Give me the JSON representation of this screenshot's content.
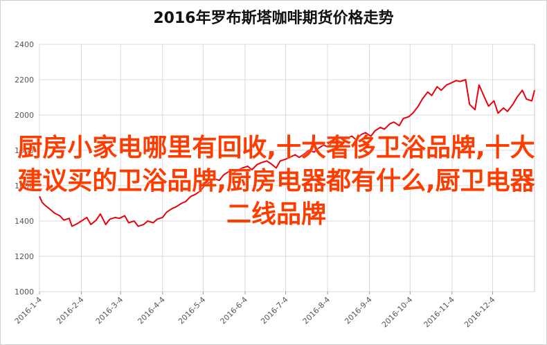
{
  "chart_data": {
    "type": "line",
    "title": "2016年罗布斯塔咖啡期货价格走势",
    "xlabel": "",
    "ylabel": "",
    "ylim": [
      1000,
      2400
    ],
    "yticks": [
      1000,
      1200,
      1400,
      1600,
      1800,
      2000,
      2200,
      2400
    ],
    "xticks": [
      "2016-1-4",
      "2016-2-4",
      "2016-3-4",
      "2016-4-4",
      "2016-5-4",
      "2016-6-4",
      "2016-7-4",
      "2016-8-4",
      "2016-9-4",
      "2016-10-4",
      "2016-11-4",
      "2016-12-4"
    ],
    "grid": true,
    "legend": "none",
    "series": [
      {
        "color": "#e8000b",
        "points": [
          [
            "2016-01-04",
            1540
          ],
          [
            "2016-01-06",
            1505
          ],
          [
            "2016-01-08",
            1490
          ],
          [
            "2016-01-12",
            1465
          ],
          [
            "2016-01-15",
            1445
          ],
          [
            "2016-01-19",
            1430
          ],
          [
            "2016-01-22",
            1405
          ],
          [
            "2016-01-26",
            1415
          ],
          [
            "2016-01-28",
            1370
          ],
          [
            "2016-02-01",
            1385
          ],
          [
            "2016-02-04",
            1400
          ],
          [
            "2016-02-08",
            1420
          ],
          [
            "2016-02-11",
            1380
          ],
          [
            "2016-02-15",
            1405
          ],
          [
            "2016-02-18",
            1440
          ],
          [
            "2016-02-22",
            1380
          ],
          [
            "2016-02-25",
            1410
          ],
          [
            "2016-02-29",
            1420
          ],
          [
            "2016-03-03",
            1415
          ],
          [
            "2016-03-07",
            1430
          ],
          [
            "2016-03-10",
            1390
          ],
          [
            "2016-03-14",
            1400
          ],
          [
            "2016-03-17",
            1370
          ],
          [
            "2016-03-21",
            1380
          ],
          [
            "2016-03-24",
            1400
          ],
          [
            "2016-03-28",
            1390
          ],
          [
            "2016-03-31",
            1410
          ],
          [
            "2016-04-04",
            1420
          ],
          [
            "2016-04-07",
            1450
          ],
          [
            "2016-04-11",
            1470
          ],
          [
            "2016-04-14",
            1480
          ],
          [
            "2016-04-18",
            1500
          ],
          [
            "2016-04-21",
            1510
          ],
          [
            "2016-04-25",
            1540
          ],
          [
            "2016-04-28",
            1550
          ],
          [
            "2016-05-02",
            1570
          ],
          [
            "2016-05-05",
            1600
          ],
          [
            "2016-05-09",
            1620
          ],
          [
            "2016-05-12",
            1640
          ],
          [
            "2016-05-16",
            1630
          ],
          [
            "2016-05-19",
            1660
          ],
          [
            "2016-05-23",
            1680
          ],
          [
            "2016-05-26",
            1670
          ],
          [
            "2016-05-30",
            1690
          ],
          [
            "2016-06-02",
            1700
          ],
          [
            "2016-06-06",
            1710
          ],
          [
            "2016-06-09",
            1690
          ],
          [
            "2016-06-13",
            1720
          ],
          [
            "2016-06-16",
            1730
          ],
          [
            "2016-06-20",
            1740
          ],
          [
            "2016-06-23",
            1725
          ],
          [
            "2016-06-27",
            1700
          ],
          [
            "2016-06-30",
            1740
          ],
          [
            "2016-07-04",
            1750
          ],
          [
            "2016-07-07",
            1760
          ],
          [
            "2016-07-11",
            1775
          ],
          [
            "2016-07-14",
            1760
          ],
          [
            "2016-07-18",
            1780
          ],
          [
            "2016-07-21",
            1800
          ],
          [
            "2016-07-25",
            1790
          ],
          [
            "2016-07-28",
            1810
          ],
          [
            "2016-08-01",
            1830
          ],
          [
            "2016-08-04",
            1820
          ],
          [
            "2016-08-08",
            1850
          ],
          [
            "2016-08-11",
            1860
          ],
          [
            "2016-08-15",
            1840
          ],
          [
            "2016-08-18",
            1870
          ],
          [
            "2016-08-22",
            1880
          ],
          [
            "2016-08-25",
            1860
          ],
          [
            "2016-08-29",
            1890
          ],
          [
            "2016-09-01",
            1900
          ],
          [
            "2016-09-05",
            1880
          ],
          [
            "2016-09-08",
            1910
          ],
          [
            "2016-09-12",
            1930
          ],
          [
            "2016-09-15",
            1920
          ],
          [
            "2016-09-19",
            1950
          ],
          [
            "2016-09-22",
            1960
          ],
          [
            "2016-09-26",
            1940
          ],
          [
            "2016-09-29",
            1980
          ],
          [
            "2016-10-03",
            1990
          ],
          [
            "2016-10-06",
            2010
          ],
          [
            "2016-10-10",
            2050
          ],
          [
            "2016-10-13",
            2090
          ],
          [
            "2016-10-17",
            2130
          ],
          [
            "2016-10-20",
            2110
          ],
          [
            "2016-10-24",
            2160
          ],
          [
            "2016-10-27",
            2140
          ],
          [
            "2016-10-31",
            2170
          ],
          [
            "2016-11-03",
            2180
          ],
          [
            "2016-11-07",
            2195
          ],
          [
            "2016-11-10",
            2190
          ],
          [
            "2016-11-14",
            2200
          ],
          [
            "2016-11-17",
            2060
          ],
          [
            "2016-11-21",
            2030
          ],
          [
            "2016-11-24",
            2170
          ],
          [
            "2016-11-28",
            2100
          ],
          [
            "2016-12-01",
            2050
          ],
          [
            "2016-12-05",
            2080
          ],
          [
            "2016-12-08",
            2010
          ],
          [
            "2016-12-12",
            2040
          ],
          [
            "2016-12-15",
            2020
          ],
          [
            "2016-12-19",
            2060
          ],
          [
            "2016-12-22",
            2100
          ],
          [
            "2016-12-26",
            2140
          ],
          [
            "2016-12-29",
            2090
          ],
          [
            "2017-01-02",
            2080
          ],
          [
            "2017-01-04",
            2140
          ]
        ]
      }
    ]
  },
  "overlay_text": "厨房小家电哪里有回收,十大奢侈卫浴品牌,十大建议买的卫浴品牌,厨房电器都有什么,厨卫电器二线品牌"
}
